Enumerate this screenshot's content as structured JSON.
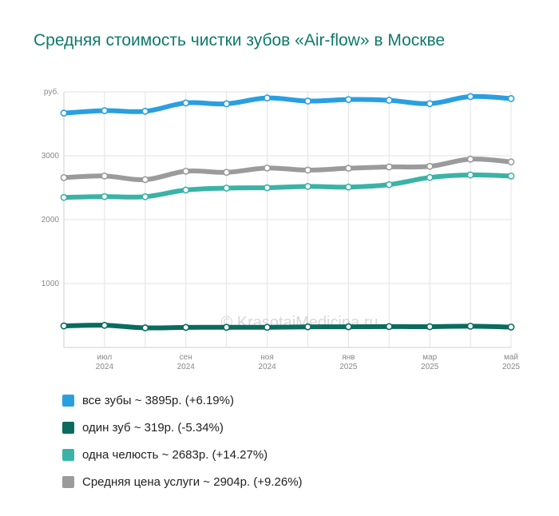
{
  "chart_data": {
    "type": "line",
    "title": "Средняя стоимость чистки зубов «Air-flow» в Москве",
    "ylabel": "руб.",
    "ylim": [
      0,
      4000
    ],
    "yticks": [
      {
        "value": 1000,
        "label": "1000"
      },
      {
        "value": 2000,
        "label": "2000"
      },
      {
        "value": 3000,
        "label": "3000"
      }
    ],
    "x": [
      "2024-06",
      "2024-07",
      "2024-08",
      "2024-09",
      "2024-10",
      "2024-11",
      "2024-12",
      "2025-01",
      "2025-02",
      "2025-03",
      "2025-04",
      "2025-05"
    ],
    "xticks": [
      {
        "x": "2024-07",
        "month": "июл",
        "year": "2024"
      },
      {
        "x": "2024-09",
        "month": "сен",
        "year": "2024"
      },
      {
        "x": "2024-11",
        "month": "ноя",
        "year": "2024"
      },
      {
        "x": "2025-01",
        "month": "янв",
        "year": "2025"
      },
      {
        "x": "2025-03",
        "month": "мар",
        "year": "2025"
      },
      {
        "x": "2025-05",
        "month": "май",
        "year": "2025"
      }
    ],
    "grid": true,
    "legend": "bottom",
    "watermark": "© KrasotaiMedicina.ru",
    "series": [
      {
        "key": "all",
        "legend": "все зубы ~ 3895р. (+6.19%)",
        "color": "#2a9fe0",
        "values": [
          3668,
          3706,
          3696,
          3826,
          3813,
          3904,
          3856,
          3880,
          3868,
          3816,
          3926,
          3895
        ]
      },
      {
        "key": "one",
        "legend": "один зуб ~ 319р. (-5.34%)",
        "color": "#0a6b5e",
        "values": [
          337,
          347,
          307,
          314,
          316,
          316,
          323,
          324,
          327,
          325,
          333,
          319
        ]
      },
      {
        "key": "jaw",
        "legend": "одна челюсть ~ 2683р. (+14.27%)",
        "color": "#3ab3a6",
        "values": [
          2348,
          2361,
          2359,
          2464,
          2494,
          2500,
          2520,
          2510,
          2548,
          2660,
          2700,
          2683
        ]
      },
      {
        "key": "avg",
        "legend": "Средняя цена услуги ~ 2904р. (+9.26%)",
        "color": "#9b9b9b",
        "values": [
          2658,
          2683,
          2627,
          2758,
          2741,
          2808,
          2776,
          2804,
          2825,
          2834,
          2947,
          2904
        ]
      }
    ]
  }
}
